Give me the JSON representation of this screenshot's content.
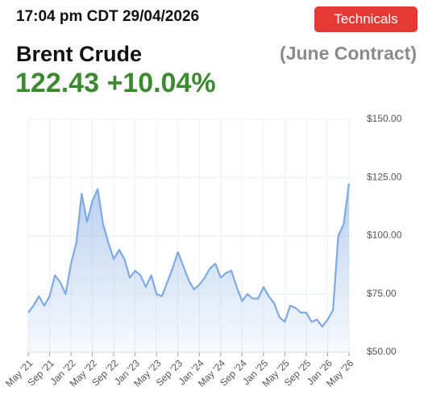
{
  "header": {
    "timestamp": "17:04 pm CDT 29/04/2026",
    "button": "Technicals",
    "instrument": "Brent Crude",
    "contract": "(June Contract)",
    "quote": "122.43 +10.04%"
  },
  "chart_data": {
    "type": "area",
    "x": [
      "2021-05",
      "2021-06",
      "2021-07",
      "2021-08",
      "2021-09",
      "2021-10",
      "2021-11",
      "2021-12",
      "2022-01",
      "2022-02",
      "2022-03",
      "2022-04",
      "2022-05",
      "2022-06",
      "2022-07",
      "2022-08",
      "2022-09",
      "2022-10",
      "2022-11",
      "2022-12",
      "2023-01",
      "2023-02",
      "2023-03",
      "2023-04",
      "2023-05",
      "2023-06",
      "2023-07",
      "2023-08",
      "2023-09",
      "2023-10",
      "2023-11",
      "2023-12",
      "2024-01",
      "2024-02",
      "2024-03",
      "2024-04",
      "2024-05",
      "2024-06",
      "2024-07",
      "2024-08",
      "2024-09",
      "2024-10",
      "2024-11",
      "2024-12",
      "2025-01",
      "2025-02",
      "2025-03",
      "2025-04",
      "2025-05",
      "2025-06",
      "2025-07",
      "2025-08",
      "2025-09",
      "2025-10",
      "2025-11",
      "2025-12",
      "2026-01",
      "2026-02",
      "2026-03",
      "2026-04",
      "2026-05"
    ],
    "values": [
      67,
      70,
      74,
      70,
      74,
      83,
      80,
      75,
      88,
      97,
      118,
      106,
      115,
      120,
      105,
      97,
      90,
      94,
      90,
      82,
      85,
      83,
      78,
      83,
      75,
      74,
      80,
      86,
      93,
      87,
      81,
      77,
      79,
      82,
      86,
      88,
      82,
      84,
      85,
      78,
      72,
      75,
      73,
      73,
      78,
      74,
      71,
      65,
      63,
      70,
      69,
      67,
      67,
      63,
      64,
      61,
      64,
      68,
      100,
      105,
      122.43
    ],
    "color": "#7fa9e2",
    "ylim": [
      50,
      150
    ],
    "yticks": [
      {
        "value": 50,
        "label": "$50.00"
      },
      {
        "value": 75,
        "label": "$75.00"
      },
      {
        "value": 100,
        "label": "$100.00"
      },
      {
        "value": 125,
        "label": "$125.00"
      },
      {
        "value": 150,
        "label": "$150.00"
      }
    ],
    "xticks": [
      {
        "value": "2021-05",
        "label": "May '21"
      },
      {
        "value": "2021-09",
        "label": "Sep '21"
      },
      {
        "value": "2022-01",
        "label": "Jan '22"
      },
      {
        "value": "2022-05",
        "label": "May '22"
      },
      {
        "value": "2022-09",
        "label": "Sep '22"
      },
      {
        "value": "2023-01",
        "label": "Jan '23"
      },
      {
        "value": "2023-05",
        "label": "May '23"
      },
      {
        "value": "2023-09",
        "label": "Sep '23"
      },
      {
        "value": "2024-01",
        "label": "Jan '24"
      },
      {
        "value": "2024-05",
        "label": "May '24"
      },
      {
        "value": "2024-09",
        "label": "Sep '24"
      },
      {
        "value": "2025-01",
        "label": "Jan '25"
      },
      {
        "value": "2025-05",
        "label": "May '25"
      },
      {
        "value": "2025-09",
        "label": "Sep '25"
      },
      {
        "value": "2026-01",
        "label": "Jan '26"
      },
      {
        "value": "2026-05",
        "label": "May '26"
      }
    ],
    "grid": true
  }
}
